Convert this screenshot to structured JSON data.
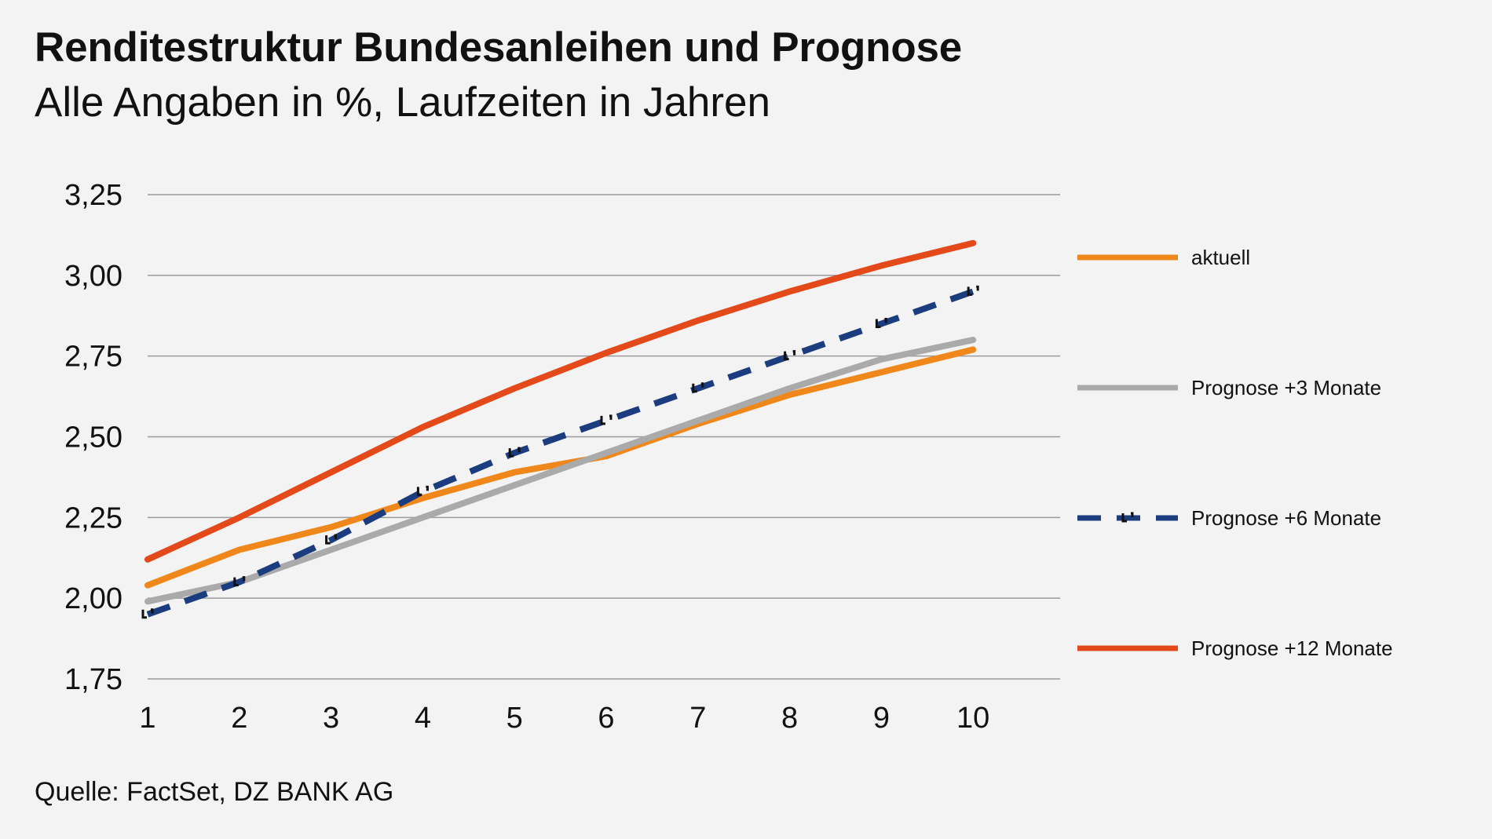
{
  "chart_data": {
    "type": "line",
    "title": "Renditestruktur Bundesanleihen und Prognose",
    "subtitle": "Alle Angaben in %, Laufzeiten in Jahren",
    "x": [
      1,
      2,
      3,
      4,
      5,
      6,
      7,
      8,
      9,
      10
    ],
    "x_tick_labels": [
      "1",
      "2",
      "3",
      "4",
      "5",
      "6",
      "7",
      "8",
      "9",
      "10"
    ],
    "y_tick_labels": [
      "3,25",
      "3,00",
      "2,75",
      "2,50",
      "2,25",
      "2,00",
      "1,75"
    ],
    "y_ticks": [
      3.25,
      3.0,
      2.75,
      2.5,
      2.25,
      2.0,
      1.75
    ],
    "ylim": [
      1.75,
      3.25
    ],
    "xlabel": "",
    "ylabel": "",
    "grid": true,
    "legend_position": "right",
    "series": [
      {
        "name": "aktuell",
        "color": "#f0871a",
        "style": "solid",
        "values": [
          2.04,
          2.15,
          2.22,
          2.31,
          2.39,
          2.44,
          2.54,
          2.63,
          2.7,
          2.77
        ]
      },
      {
        "name": "Prognose +3 Monate",
        "color": "#aaaaaa",
        "style": "solid",
        "values": [
          1.99,
          2.05,
          2.15,
          2.25,
          2.35,
          2.45,
          2.55,
          2.65,
          2.74,
          2.8
        ]
      },
      {
        "name": "Prognose +6 Monate",
        "color": "#1c3c80",
        "style": "dashed",
        "values": [
          1.95,
          2.05,
          2.18,
          2.33,
          2.45,
          2.55,
          2.65,
          2.75,
          2.85,
          2.95
        ]
      },
      {
        "name": "Prognose +12 Monate",
        "color": "#e4491a",
        "style": "solid",
        "values": [
          2.12,
          2.25,
          2.39,
          2.53,
          2.65,
          2.76,
          2.86,
          2.95,
          3.03,
          3.1
        ]
      }
    ],
    "source": "Quelle: FactSet, DZ BANK AG"
  }
}
